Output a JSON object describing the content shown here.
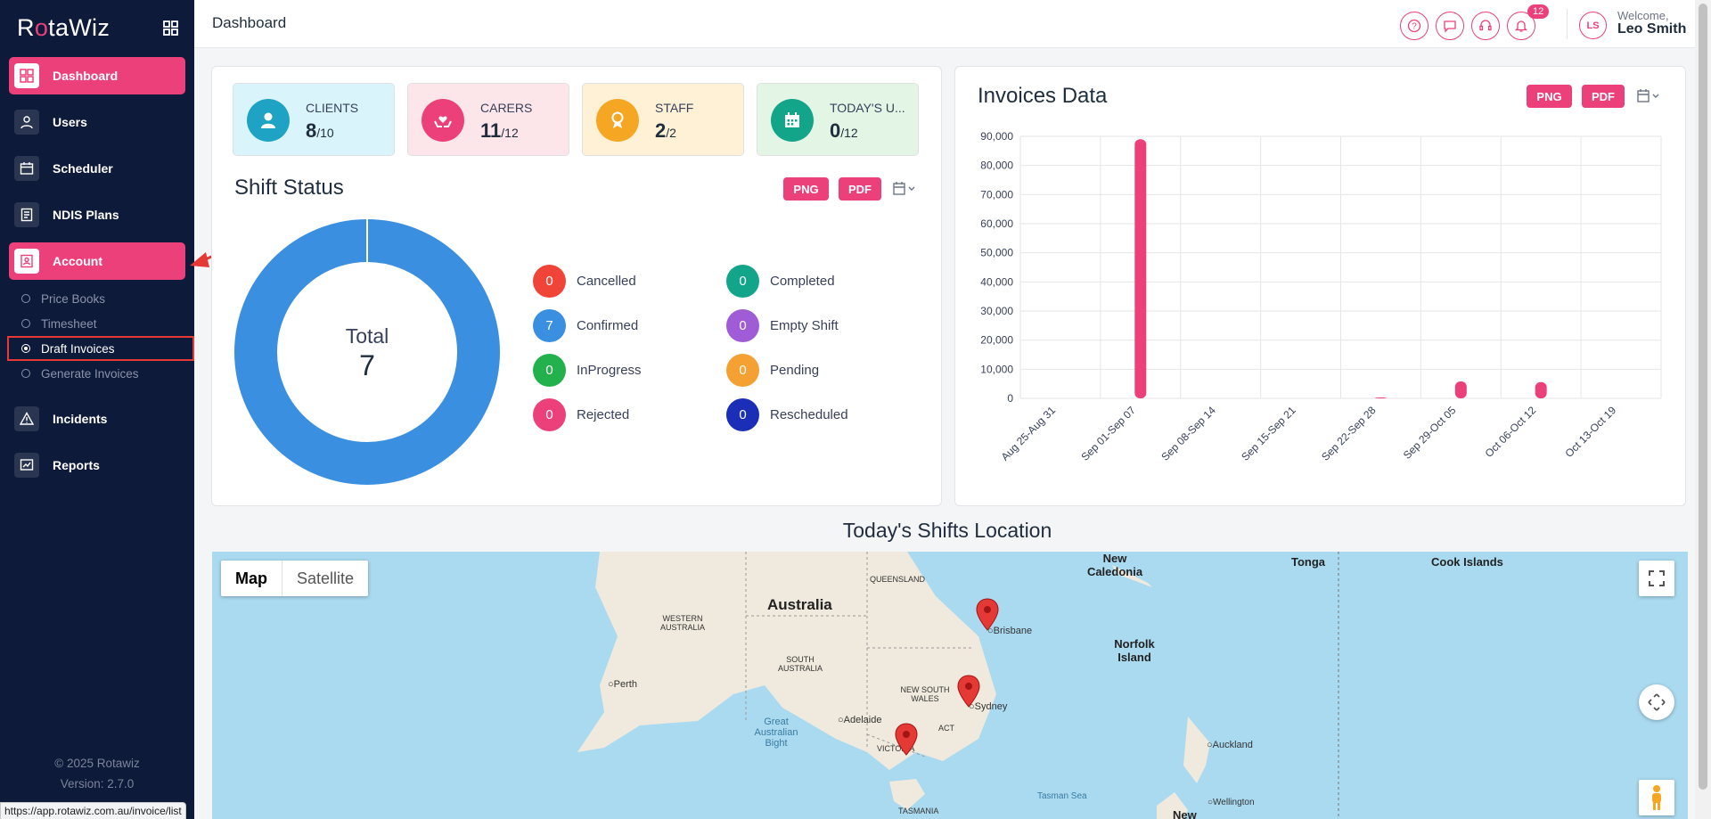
{
  "app": {
    "logo_text": "RotaWiz"
  },
  "sidebar": {
    "items": [
      {
        "label": "Dashboard"
      },
      {
        "label": "Users"
      },
      {
        "label": "Scheduler"
      },
      {
        "label": "NDIS Plans"
      },
      {
        "label": "Account"
      },
      {
        "label": "Incidents"
      },
      {
        "label": "Reports"
      }
    ],
    "account_sub": [
      {
        "label": "Price Books"
      },
      {
        "label": "Timesheet"
      },
      {
        "label": "Draft Invoices"
      },
      {
        "label": "Generate Invoices"
      }
    ],
    "footer_copyright": "© 2025 Rotawiz",
    "footer_version": "Version: 2.7.0"
  },
  "status_url": "https://app.rotawiz.com.au/invoice/list",
  "header": {
    "title": "Dashboard",
    "notifications_badge": "12",
    "welcome": "Welcome,",
    "user_name": "Leo Smith",
    "avatar_initials": "LS"
  },
  "stats": [
    {
      "label": "CLIENTS",
      "value": "8",
      "total": "/10",
      "bg": "#d9f4fb",
      "icon_bg": "#1ea3c4"
    },
    {
      "label": "CARERS",
      "value": "11",
      "total": "/12",
      "bg": "#fde6ea",
      "icon_bg": "#ec407a"
    },
    {
      "label": "STAFF",
      "value": "2",
      "total": "/2",
      "bg": "#fff1d6",
      "icon_bg": "#f5a623"
    },
    {
      "label": "TODAY'S U...",
      "value": "0",
      "total": "/12",
      "bg": "#e3f6e5",
      "icon_bg": "#12a589"
    }
  ],
  "shift_status": {
    "title": "Shift Status",
    "png": "PNG",
    "pdf": "PDF",
    "total_label": "Total",
    "total_value": "7",
    "legend": [
      {
        "label": "Cancelled",
        "value": "0",
        "color": "#f04438"
      },
      {
        "label": "Completed",
        "value": "0",
        "color": "#12a589"
      },
      {
        "label": "Confirmed",
        "value": "7",
        "color": "#3b8fe0"
      },
      {
        "label": "Empty Shift",
        "value": "0",
        "color": "#a05bd6"
      },
      {
        "label": "InProgress",
        "value": "0",
        "color": "#22b14c"
      },
      {
        "label": "Pending",
        "value": "0",
        "color": "#f5a033"
      },
      {
        "label": "Rejected",
        "value": "0",
        "color": "#ec407a"
      },
      {
        "label": "Rescheduled",
        "value": "0",
        "color": "#1a2eb8"
      }
    ]
  },
  "invoices": {
    "title": "Invoices Data",
    "png": "PNG",
    "pdf": "PDF"
  },
  "chart_data": {
    "type": "bar",
    "title": "Invoices Data",
    "xlabel": "",
    "ylabel": "",
    "categories": [
      "Aug 25-Aug 31",
      "Sep 01-Sep 07",
      "Sep 08-Sep 14",
      "Sep 15-Sep 21",
      "Sep 22-Sep 28",
      "Sep 29-Oct 05",
      "Oct 06-Oct 12",
      "Oct 13-Oct 19"
    ],
    "values": [
      0,
      89000,
      0,
      0,
      300,
      5800,
      5600,
      0
    ],
    "ylim": [
      0,
      90000
    ],
    "yticks": [
      "0",
      "10,000",
      "20,000",
      "30,000",
      "40,000",
      "50,000",
      "60,000",
      "70,000",
      "80,000",
      "90,000"
    ],
    "bar_color": "#ec407a",
    "grid": true
  },
  "map": {
    "title": "Today's Shifts Location",
    "toggle_map": "Map",
    "toggle_satellite": "Satellite",
    "labels": [
      "Australia",
      "QUEENSLAND",
      "WESTERN AUSTRALIA",
      "SOUTH AUSTRALIA",
      "NEW SOUTH WALES",
      "VICTORIA",
      "ACT",
      "TASMANIA",
      "Perth",
      "Adelaide",
      "Brisbane",
      "Sydney",
      "Great Australian Bight",
      "New Caledonia",
      "Norfolk Island",
      "Tonga",
      "Cook Islands",
      "Auckland",
      "Wellington",
      "Tasman Sea",
      "New"
    ]
  }
}
